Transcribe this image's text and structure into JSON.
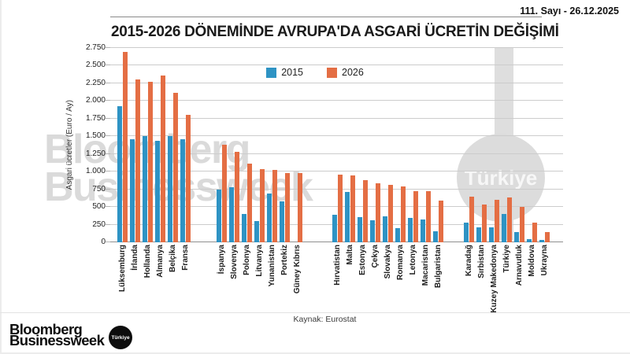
{
  "header": {
    "issue_info": "111. Sayı - 26.12.2025"
  },
  "watermark": {
    "line1": "Bloomberg",
    "line2": "Businessweek",
    "circle_label": "Türkiye"
  },
  "footer": {
    "logo_line1": "Bloomberg",
    "logo_line2": "Businessweek",
    "logo_circle_label": "Türkiye"
  },
  "chart_data": {
    "type": "bar",
    "title": "2015-2026 DÖNEMİNDE AVRUPA'DA ASGARİ ÜCRETİN DEĞİŞİMİ",
    "ylabel": "Asgari ücretler (Euro / Ay)",
    "source": "Kaynak: Eurostat",
    "unit": "Euro / Ay",
    "ylim": [
      0,
      2750
    ],
    "ytick_step": 250,
    "ytick_labels": [
      "0",
      "250",
      "500",
      "750",
      "1.000",
      "1.250",
      "1.500",
      "1.750",
      "2.000",
      "2.250",
      "2.500",
      "2.750"
    ],
    "grid": true,
    "legend_position": "top-center",
    "series": [
      {
        "name": "2015",
        "color": "#2E93C4"
      },
      {
        "name": "2026",
        "color": "#E46E44"
      }
    ],
    "groups": [
      {
        "categories": [
          "Lüksemburg",
          "İrlanda",
          "Hollanda",
          "Almanya",
          "Belçika",
          "Fransa"
        ],
        "values_2015": [
          1930,
          1460,
          1500,
          1440,
          1500,
          1460
        ],
        "values_2026": [
          2700,
          2300,
          2270,
          2360,
          2120,
          1800
        ]
      },
      {
        "categories": [
          "İspanya",
          "Slovenya",
          "Polonya",
          "Litvanya",
          "Yunanistan",
          "Portekiz",
          "Güney Kıbrıs"
        ],
        "values_2015": [
          750,
          780,
          400,
          300,
          690,
          575,
          null
        ],
        "values_2026": [
          1380,
          1275,
          1110,
          1040,
          1025,
          980,
          980
        ]
      },
      {
        "categories": [
          "Hırvatistan",
          "Malta",
          "Estonya",
          "Çekya",
          "Slovakya",
          "Romanya",
          "Letonya",
          "Macaristan",
          "Bulgaristan"
        ],
        "values_2015": [
          390,
          715,
          355,
          310,
          365,
          205,
          340,
          320,
          155
        ],
        "values_2026": [
          955,
          945,
          880,
          835,
          810,
          790,
          720,
          720,
          590
        ]
      },
      {
        "categories": [
          "Karadağ",
          "Sırbistan",
          "Kuzey Makedonya",
          "Türkiye",
          "Arnavutluk",
          "Moldova",
          "Ukrayna"
        ],
        "values_2015": [
          275,
          210,
          210,
          400,
          140,
          40,
          35
        ],
        "values_2026": [
          650,
          535,
          600,
          630,
          505,
          275,
          150
        ]
      }
    ]
  }
}
